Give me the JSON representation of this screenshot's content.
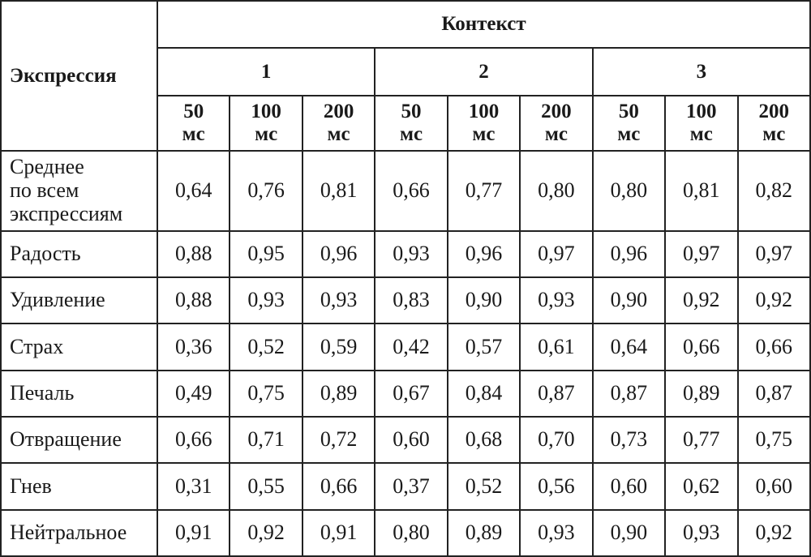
{
  "table": {
    "header": {
      "title": "Экспрессия",
      "group": "Контекст",
      "contexts": [
        "1",
        "2",
        "3"
      ],
      "durations": [
        "50\nмс",
        "100\nмс",
        "200\nмс",
        "50\nмс",
        "100\nмс",
        "200\nмс",
        "50\nмс",
        "100\nмс",
        "200\nмс"
      ]
    },
    "rows": [
      {
        "label": "Среднее\nпо всем\nэкспрессиям",
        "values": [
          "0,64",
          "0,76",
          "0,81",
          "0,66",
          "0,77",
          "0,80",
          "0,80",
          "0,81",
          "0,82"
        ]
      },
      {
        "label": "Радость",
        "values": [
          "0,88",
          "0,95",
          "0,96",
          "0,93",
          "0,96",
          "0,97",
          "0,96",
          "0,97",
          "0,97"
        ]
      },
      {
        "label": "Удивление",
        "values": [
          "0,88",
          "0,93",
          "0,93",
          "0,83",
          "0,90",
          "0,93",
          "0,90",
          "0,92",
          "0,92"
        ]
      },
      {
        "label": "Страх",
        "values": [
          "0,36",
          "0,52",
          "0,59",
          "0,42",
          "0,57",
          "0,61",
          "0,64",
          "0,66",
          "0,66"
        ]
      },
      {
        "label": "Печаль",
        "values": [
          "0,49",
          "0,75",
          "0,89",
          "0,67",
          "0,84",
          "0,87",
          "0,87",
          "0,89",
          "0,87"
        ]
      },
      {
        "label": "Отвращение",
        "values": [
          "0,66",
          "0,71",
          "0,72",
          "0,60",
          "0,68",
          "0,70",
          "0,73",
          "0,77",
          "0,75"
        ]
      },
      {
        "label": "Гнев",
        "values": [
          "0,31",
          "0,55",
          "0,66",
          "0,37",
          "0,52",
          "0,56",
          "0,60",
          "0,62",
          "0,60"
        ]
      },
      {
        "label": "Нейтральное",
        "values": [
          "0,91",
          "0,92",
          "0,91",
          "0,80",
          "0,89",
          "0,93",
          "0,90",
          "0,93",
          "0,92"
        ]
      }
    ]
  }
}
